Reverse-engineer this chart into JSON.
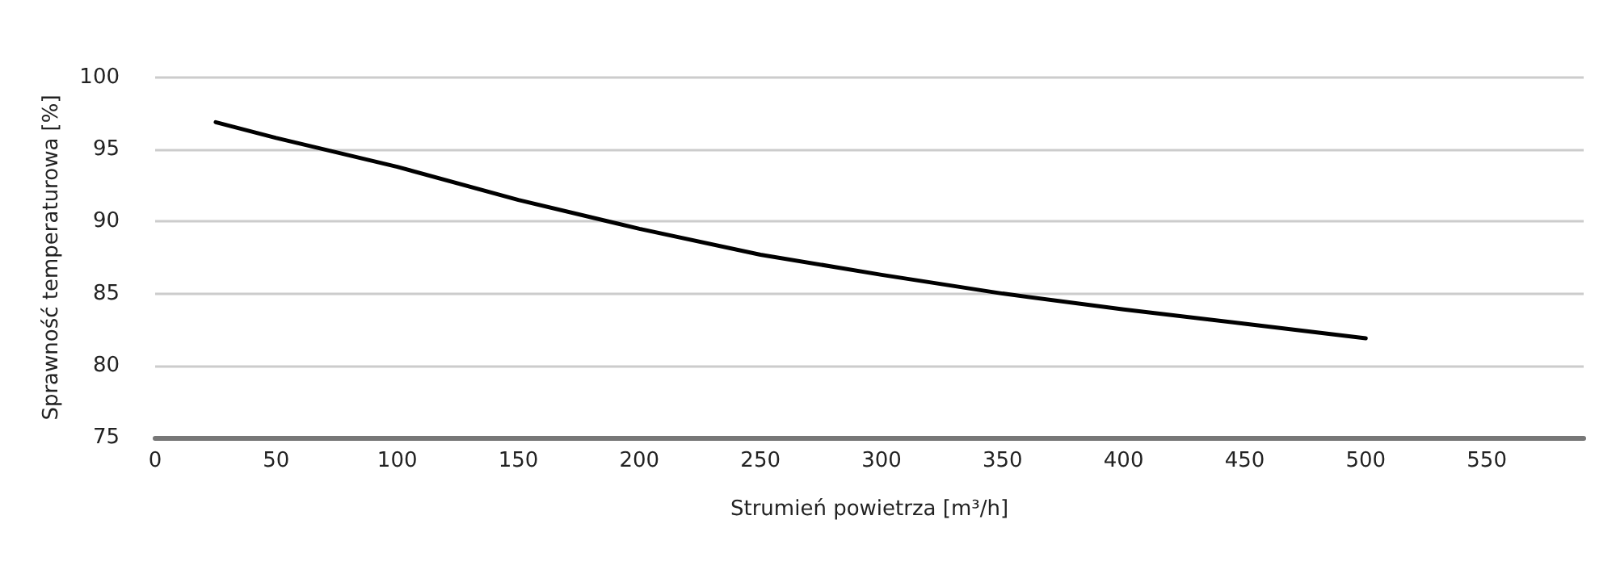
{
  "chart_data": {
    "type": "line",
    "xlabel": "Strumień powietrza [m³/h]",
    "ylabel": "Sprawność temperaturowa [%]",
    "x": [
      25,
      50,
      100,
      150,
      200,
      250,
      300,
      350,
      400,
      450,
      500
    ],
    "series": [
      {
        "color": "#000000",
        "values": [
          96.9,
          95.8,
          93.8,
          91.5,
          89.5,
          87.7,
          86.3,
          85.0,
          83.9,
          82.9,
          81.9
        ]
      }
    ],
    "xlim": [
      0,
      590
    ],
    "xticks": [
      0,
      50,
      100,
      150,
      200,
      250,
      300,
      350,
      400,
      450,
      500,
      550
    ],
    "ylim": [
      75,
      100
    ],
    "yticks": [
      75,
      80,
      85,
      90,
      95,
      100
    ],
    "grid": "y",
    "marker": "none",
    "line_style": "solid"
  }
}
